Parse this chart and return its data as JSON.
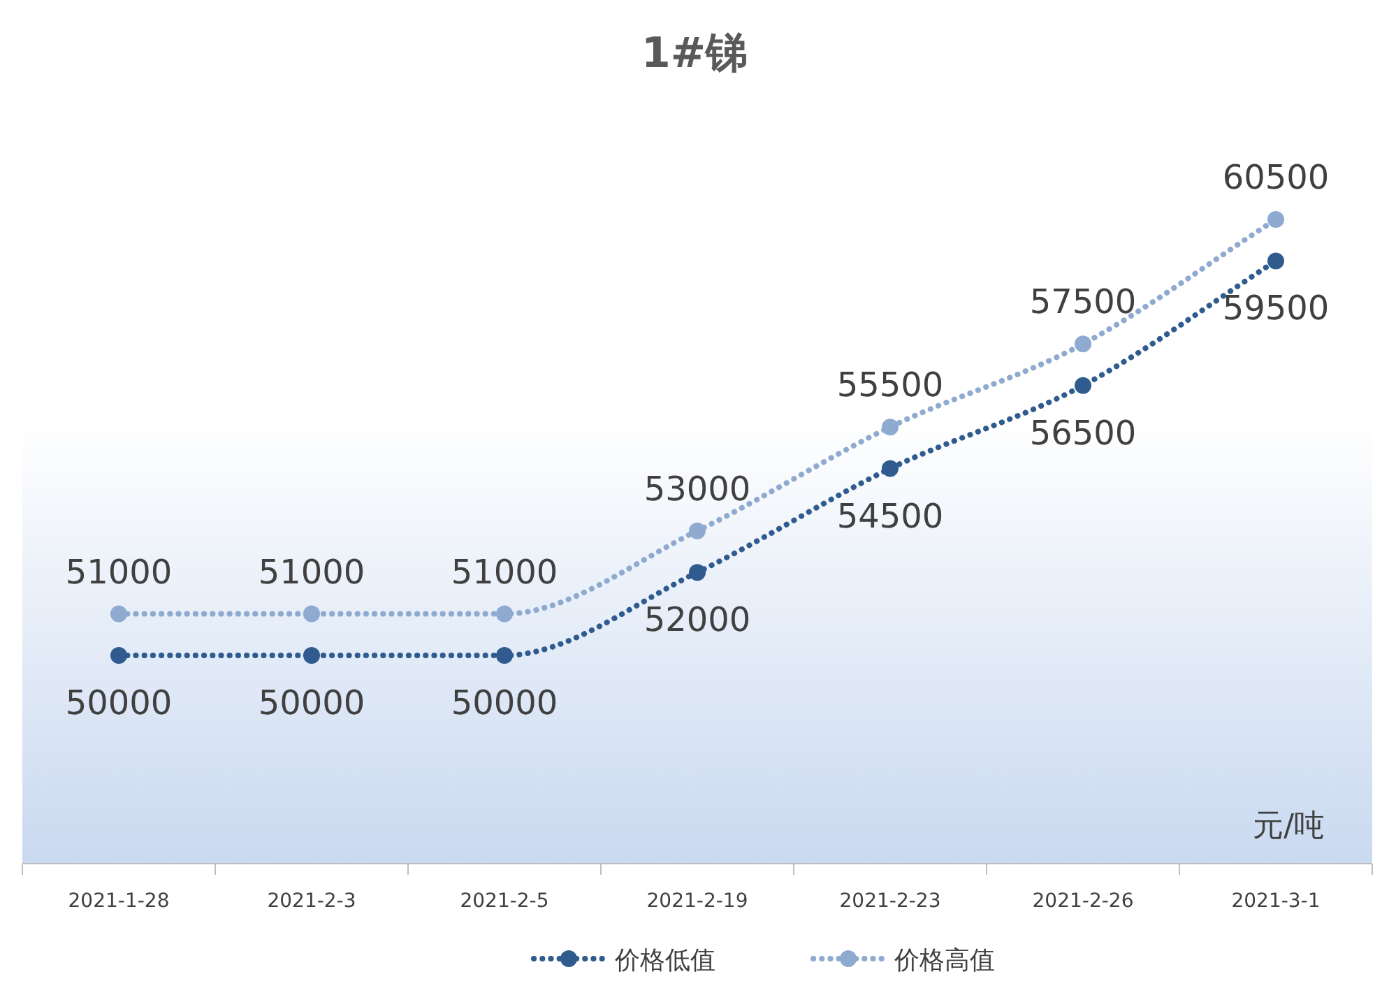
{
  "chart_data": {
    "type": "line",
    "title": "1#锑",
    "categories": [
      "2021-1-28",
      "2021-2-3",
      "2021-2-5",
      "2021-2-19",
      "2021-2-23",
      "2021-2-26",
      "2021-3-1"
    ],
    "series": [
      {
        "name": "价格低值",
        "color": "#2f5b8f",
        "values": [
          50000,
          50000,
          50000,
          52000,
          54500,
          56500,
          59500
        ]
      },
      {
        "name": "价格高值",
        "color": "#8faad0",
        "values": [
          51000,
          51000,
          51000,
          53000,
          55500,
          57500,
          60500
        ]
      }
    ],
    "data_labels": true,
    "marker": "circle",
    "line_style": "dotted",
    "grid": false,
    "legend": "bottom",
    "tick_labels": "x",
    "annotations": [
      "元/吨"
    ]
  }
}
